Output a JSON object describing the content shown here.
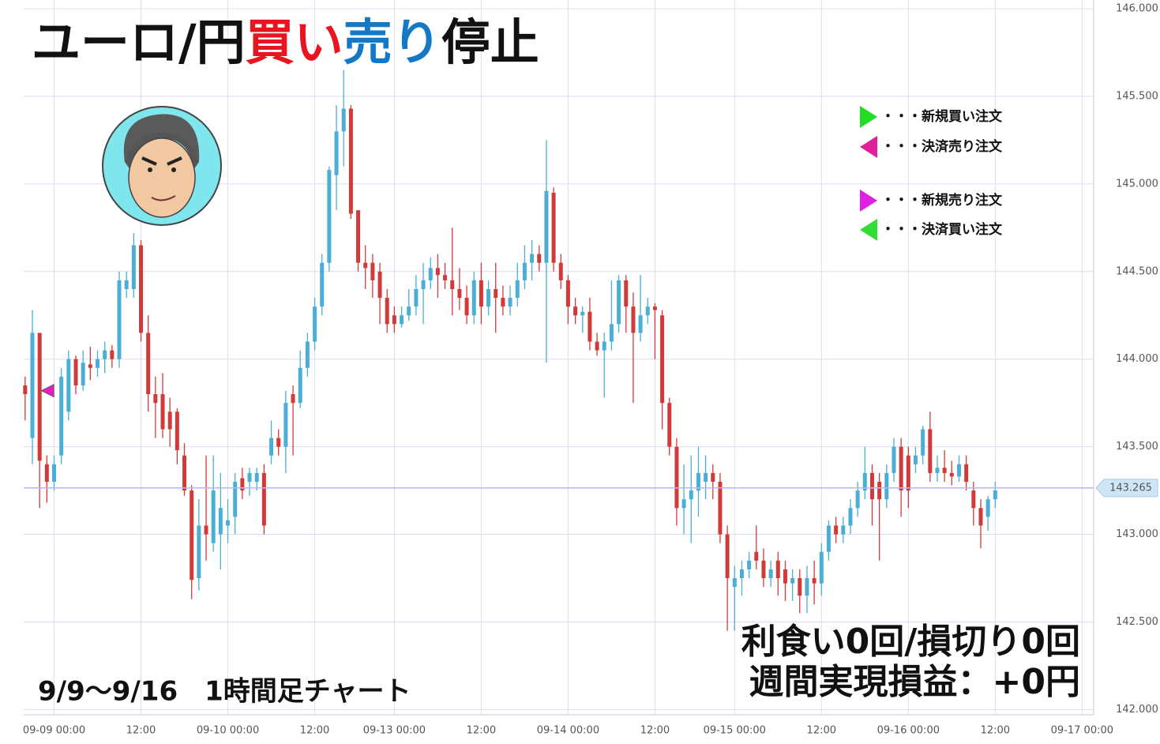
{
  "chart_data": {
    "type": "candlestick",
    "title_parts": [
      {
        "text": "ユーロ/円",
        "color": "#111111"
      },
      {
        "text": "買い",
        "color": "#e8141e"
      },
      {
        "text": "売り",
        "color": "#1478c8"
      },
      {
        "text": "停止",
        "color": "#111111"
      }
    ],
    "period_label": "9/9～9/16　1時間足チャート",
    "stats": [
      "利食い0回/損切り0回",
      "週間実現損益：+0円"
    ],
    "legend": [
      {
        "label": "・・・新規買い注文",
        "color": "#22dd22",
        "direction": "right"
      },
      {
        "label": "・・・決済売り注文",
        "color": "#e0209a",
        "direction": "left"
      },
      {
        "label": "・・・新規売り注文",
        "color": "#e020e0",
        "direction": "right"
      },
      {
        "label": "・・・決済買い注文",
        "color": "#33dd33",
        "direction": "left"
      }
    ],
    "up_color": "#4aaed6",
    "down_color": "#d23a3a",
    "grid": true,
    "xlim": [
      -4.2,
      143.6
    ],
    "ylim": [
      141.97,
      146.05
    ],
    "xticks": [
      {
        "value": 0,
        "label": "09-09 00:00"
      },
      {
        "value": 12,
        "label": "12:00"
      },
      {
        "value": 24,
        "label": "09-10 00:00"
      },
      {
        "value": 36,
        "label": "12:00"
      },
      {
        "value": 47,
        "label": "09-13 00:00"
      },
      {
        "value": 59,
        "label": "12:00"
      },
      {
        "value": 71,
        "label": "09-14 00:00"
      },
      {
        "value": 83,
        "label": "12:00"
      },
      {
        "value": 94,
        "label": "09-15 00:00"
      },
      {
        "value": 106,
        "label": "12:00"
      },
      {
        "value": 118,
        "label": "09-16 00:00"
      },
      {
        "value": 130,
        "label": "12:00"
      },
      {
        "value": 142,
        "label": "09-17 00:00"
      }
    ],
    "yticks": [
      {
        "value": 142,
        "label": "142.000"
      },
      {
        "value": 142.5,
        "label": "142.500"
      },
      {
        "value": 143,
        "label": "143.000"
      },
      {
        "value": 143.5,
        "label": "143.500"
      },
      {
        "value": 144,
        "label": "144.000"
      },
      {
        "value": 144.5,
        "label": "144.500"
      },
      {
        "value": 145,
        "label": "145.000"
      },
      {
        "value": 145.5,
        "label": "145.500"
      },
      {
        "value": 146,
        "label": "146.000"
      }
    ],
    "last_price": 143.265,
    "trade_markers": [
      {
        "x": -0.9,
        "price": 143.82,
        "color": "#e020c0"
      }
    ],
    "x": [
      -4,
      -3,
      -2,
      -1,
      0,
      1,
      2,
      3,
      4,
      5,
      6,
      7,
      8,
      9,
      10,
      11,
      12,
      13,
      14,
      15,
      16,
      17,
      18,
      19,
      20,
      21,
      22,
      23,
      24,
      25,
      26,
      27,
      28,
      29,
      30,
      31,
      32,
      33,
      34,
      35,
      36,
      37,
      38,
      39,
      40,
      41,
      42,
      43,
      44,
      45,
      46,
      47,
      48,
      49,
      50,
      51,
      52,
      53,
      54,
      55,
      56,
      57,
      58,
      59,
      60,
      61,
      62,
      63,
      64,
      65,
      66,
      67,
      68,
      69,
      70,
      71,
      72,
      73,
      74,
      75,
      76,
      77,
      78,
      79,
      80,
      81,
      82,
      83,
      84,
      85,
      86,
      87,
      88,
      89,
      90,
      91,
      92,
      93,
      94,
      95,
      96,
      97,
      98,
      99,
      100,
      101,
      102,
      103,
      104,
      105,
      106,
      107,
      108,
      109,
      110,
      111,
      112,
      113,
      114,
      115,
      116,
      117,
      118,
      119,
      120,
      121,
      122,
      123,
      124,
      125,
      126,
      127,
      128,
      129,
      130
    ],
    "open": [
      143.85,
      143.55,
      144.15,
      143.4,
      143.3,
      143.45,
      143.7,
      144.0,
      143.85,
      143.97,
      143.95,
      144.0,
      144.05,
      144.0,
      144.4,
      144.4,
      144.65,
      144.15,
      143.8,
      143.8,
      143.7,
      143.7,
      143.45,
      143.25,
      142.75,
      143.05,
      142.95,
      143.0,
      143.05,
      143.1,
      143.32,
      143.3,
      143.3,
      143.35,
      143.45,
      143.55,
      143.5,
      143.8,
      143.75,
      143.95,
      144.1,
      144.3,
      144.55,
      145.05,
      145.3,
      145.43,
      144.85,
      144.55,
      144.55,
      144.5,
      144.35,
      144.25,
      144.2,
      144.25,
      144.3,
      144.4,
      144.45,
      144.52,
      144.48,
      144.45,
      144.4,
      144.35,
      144.25,
      144.45,
      144.3,
      144.4,
      144.35,
      144.3,
      144.35,
      144.45,
      144.55,
      144.6,
      144.55,
      144.95,
      144.55,
      144.45,
      144.3,
      144.25,
      144.27,
      144.1,
      144.05,
      144.1,
      144.2,
      144.45,
      144.3,
      144.15,
      144.25,
      144.3,
      144.25,
      143.75,
      143.5,
      143.15,
      143.2,
      143.25,
      143.3,
      143.35,
      143.3,
      143.0,
      142.7,
      142.75,
      142.8,
      142.9,
      142.85,
      142.75,
      142.85,
      142.8,
      142.72,
      142.75,
      142.65,
      142.75,
      142.72,
      142.9,
      143.05,
      143.0,
      143.05,
      143.15,
      143.25,
      143.35,
      143.3,
      143.2,
      143.35,
      143.5,
      143.45,
      143.4,
      143.45,
      143.6,
      143.35,
      143.38,
      143.35,
      143.33,
      143.4,
      143.25,
      143.15,
      143.1,
      143.2
    ],
    "high": [
      143.9,
      144.28,
      144.15,
      143.45,
      143.45,
      143.95,
      144.05,
      144.02,
      144.05,
      144.07,
      144.05,
      144.1,
      144.08,
      144.5,
      144.5,
      144.72,
      144.68,
      144.25,
      143.9,
      143.92,
      143.78,
      143.72,
      143.52,
      143.28,
      143.2,
      143.45,
      143.45,
      143.35,
      143.2,
      143.35,
      143.38,
      143.38,
      143.38,
      143.4,
      143.65,
      143.6,
      143.82,
      143.85,
      144.05,
      144.15,
      144.35,
      144.6,
      145.1,
      145.45,
      145.65,
      145.45,
      144.85,
      144.65,
      144.6,
      144.55,
      144.4,
      144.3,
      144.3,
      144.4,
      144.48,
      144.55,
      144.58,
      144.6,
      144.55,
      144.75,
      144.52,
      144.42,
      144.5,
      144.55,
      144.45,
      144.55,
      144.42,
      144.42,
      144.55,
      144.65,
      144.68,
      144.65,
      145.25,
      144.98,
      144.6,
      144.48,
      144.35,
      144.3,
      144.35,
      144.15,
      144.15,
      144.45,
      144.48,
      144.48,
      144.38,
      144.48,
      144.35,
      144.32,
      144.28,
      143.78,
      143.55,
      143.4,
      143.45,
      143.5,
      143.45,
      143.4,
      143.35,
      143.05,
      142.82,
      142.85,
      142.9,
      143.05,
      142.92,
      142.85,
      142.9,
      142.85,
      142.8,
      142.8,
      142.82,
      142.85,
      142.95,
      143.08,
      143.1,
      143.1,
      143.2,
      143.3,
      143.5,
      143.4,
      143.35,
      143.4,
      143.55,
      143.55,
      143.5,
      143.5,
      143.62,
      143.7,
      143.45,
      143.48,
      143.42,
      143.45,
      143.45,
      143.3,
      143.2,
      143.22,
      143.3
    ],
    "low": [
      143.65,
      143.4,
      143.15,
      143.18,
      143.25,
      143.4,
      143.65,
      143.8,
      143.82,
      143.88,
      143.9,
      143.92,
      143.95,
      143.95,
      144.35,
      144.35,
      144.1,
      143.7,
      143.55,
      143.55,
      143.5,
      143.4,
      143.22,
      142.63,
      142.68,
      142.85,
      142.9,
      142.8,
      142.95,
      143.0,
      143.2,
      143.22,
      143.25,
      143.0,
      143.4,
      143.45,
      143.35,
      143.45,
      143.72,
      143.9,
      144.05,
      144.25,
      144.5,
      144.85,
      145.1,
      144.8,
      144.5,
      144.4,
      144.35,
      144.2,
      144.15,
      144.15,
      144.18,
      144.22,
      144.25,
      144.2,
      144.4,
      144.35,
      144.4,
      144.25,
      144.28,
      144.2,
      144.2,
      144.2,
      144.25,
      144.15,
      144.25,
      144.25,
      144.3,
      144.4,
      144.45,
      144.5,
      143.98,
      144.5,
      144.4,
      144.2,
      144.2,
      144.15,
      144.05,
      144.02,
      143.78,
      144.05,
      144.15,
      144.15,
      143.75,
      144.1,
      144.2,
      144.0,
      143.6,
      143.45,
      143.05,
      143.0,
      142.95,
      143.1,
      143.2,
      143.2,
      142.95,
      142.45,
      142.45,
      142.65,
      142.75,
      142.8,
      142.7,
      142.7,
      142.65,
      142.62,
      142.62,
      142.55,
      142.55,
      142.6,
      142.65,
      142.85,
      142.95,
      142.95,
      143.0,
      143.1,
      143.2,
      143.05,
      142.85,
      143.15,
      143.3,
      143.1,
      143.15,
      143.35,
      143.4,
      143.3,
      143.3,
      143.3,
      143.28,
      143.3,
      143.25,
      143.05,
      142.92,
      143.02,
      143.15
    ],
    "close": [
      143.8,
      144.15,
      143.42,
      143.3,
      143.4,
      143.9,
      144.0,
      143.85,
      143.98,
      143.95,
      144.0,
      144.05,
      144.0,
      144.45,
      144.45,
      144.65,
      144.15,
      143.8,
      143.75,
      143.6,
      143.6,
      143.48,
      143.25,
      142.74,
      143.05,
      143.0,
      143.25,
      143.15,
      143.08,
      143.3,
      143.25,
      143.35,
      143.35,
      143.05,
      143.55,
      143.5,
      143.75,
      143.75,
      143.95,
      144.1,
      144.3,
      144.55,
      145.08,
      145.3,
      145.43,
      144.83,
      144.55,
      144.52,
      144.45,
      144.35,
      144.2,
      144.2,
      144.25,
      144.3,
      144.4,
      144.45,
      144.52,
      144.48,
      144.45,
      144.4,
      144.35,
      144.25,
      144.45,
      144.3,
      144.4,
      144.35,
      144.3,
      144.35,
      144.45,
      144.55,
      144.6,
      144.55,
      144.96,
      144.55,
      144.45,
      144.3,
      144.25,
      144.27,
      144.1,
      144.05,
      144.1,
      144.2,
      144.45,
      144.3,
      144.15,
      144.25,
      144.3,
      144.28,
      143.75,
      143.5,
      143.15,
      143.2,
      143.25,
      143.35,
      143.35,
      143.3,
      143.0,
      142.75,
      142.75,
      142.8,
      142.85,
      142.85,
      142.75,
      142.8,
      142.75,
      142.72,
      142.75,
      142.65,
      142.75,
      142.72,
      142.9,
      143.05,
      143.0,
      143.05,
      143.15,
      143.25,
      143.35,
      143.2,
      143.2,
      143.35,
      143.5,
      143.25,
      143.25,
      143.45,
      143.6,
      143.35,
      143.38,
      143.35,
      143.33,
      143.4,
      143.3,
      143.15,
      143.05,
      143.2,
      143.25
    ]
  }
}
